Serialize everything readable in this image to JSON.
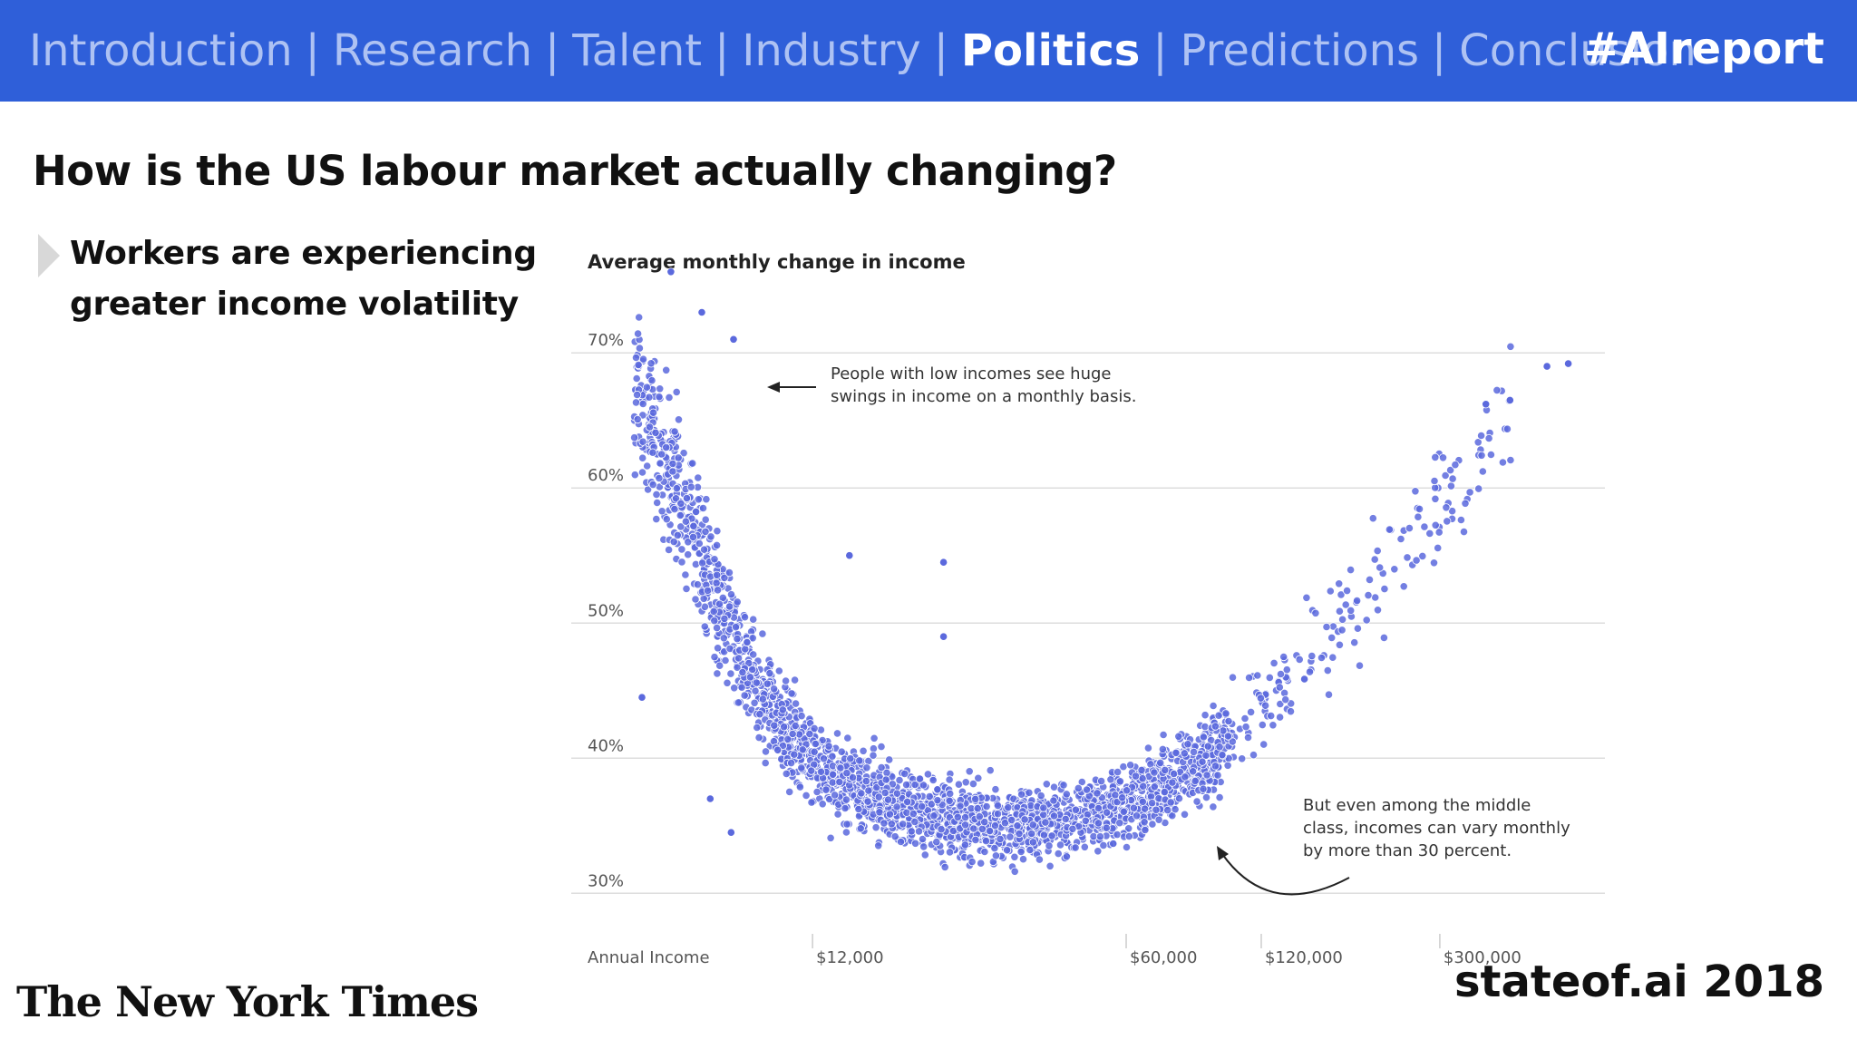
{
  "nav": {
    "items": [
      {
        "label": "Introduction",
        "active": false
      },
      {
        "label": "Research",
        "active": false
      },
      {
        "label": "Talent",
        "active": false
      },
      {
        "label": "Industry",
        "active": false
      },
      {
        "label": "Politics",
        "active": true
      },
      {
        "label": "Predictions",
        "active": false
      },
      {
        "label": "Conclusion",
        "active": false
      }
    ],
    "separator": "|",
    "hashtag": "#AIreport"
  },
  "page": {
    "title": "How is the US labour market actually changing?",
    "bullet": "Workers are experiencing greater income volatility"
  },
  "footer": {
    "source_logo": "The New York Times",
    "brand": "stateof.ai 2018"
  },
  "colors": {
    "bar": "#2f5fd9",
    "nav_inactive": "#aec2f3",
    "dot": "#5b69dd",
    "grid": "#dddddd"
  },
  "chart_data": {
    "type": "scatter",
    "title": "Average monthly change in income",
    "xlabel": "Annual Income",
    "ylabel": "",
    "x_scale": "log",
    "x_ticks": [
      {
        "value": 12000,
        "label": "$12,000"
      },
      {
        "value": 60000,
        "label": "$60,000"
      },
      {
        "value": 120000,
        "label": "$120,000"
      },
      {
        "value": 300000,
        "label": "$300,000"
      }
    ],
    "xlim": [
      4000,
      700000
    ],
    "y_ticks": [
      {
        "value": 30,
        "label": "30%"
      },
      {
        "value": 40,
        "label": "40%"
      },
      {
        "value": 50,
        "label": "50%"
      },
      {
        "value": 60,
        "label": "60%"
      },
      {
        "value": 70,
        "label": "70%"
      }
    ],
    "ylim": [
      27,
      78
    ],
    "grid": true,
    "trend": [
      {
        "x": 5000,
        "y": 66
      },
      {
        "x": 6000,
        "y": 60
      },
      {
        "x": 7000,
        "y": 54
      },
      {
        "x": 8500,
        "y": 47
      },
      {
        "x": 10500,
        "y": 42
      },
      {
        "x": 14000,
        "y": 38
      },
      {
        "x": 20000,
        "y": 36
      },
      {
        "x": 30000,
        "y": 35
      },
      {
        "x": 45000,
        "y": 35.5
      },
      {
        "x": 65000,
        "y": 37
      },
      {
        "x": 90000,
        "y": 40
      },
      {
        "x": 120000,
        "y": 44
      },
      {
        "x": 160000,
        "y": 48
      },
      {
        "x": 220000,
        "y": 53
      },
      {
        "x": 300000,
        "y": 59
      },
      {
        "x": 450000,
        "y": 67
      }
    ],
    "point_count": 2600,
    "outliers": [
      {
        "x": 5800,
        "y": 76
      },
      {
        "x": 6800,
        "y": 73
      },
      {
        "x": 8000,
        "y": 71
      },
      {
        "x": 14500,
        "y": 55
      },
      {
        "x": 23500,
        "y": 54.5
      },
      {
        "x": 23500,
        "y": 49
      },
      {
        "x": 5000,
        "y": 44.5
      },
      {
        "x": 7100,
        "y": 37
      },
      {
        "x": 7900,
        "y": 34.5
      },
      {
        "x": 520000,
        "y": 69
      },
      {
        "x": 580000,
        "y": 69.2
      },
      {
        "x": 430000,
        "y": 66.5
      },
      {
        "x": 380000,
        "y": 66.2
      }
    ],
    "annotations": [
      {
        "text_lines": [
          "People with low incomes see huge",
          "swings in income on a monthly basis."
        ]
      },
      {
        "text_lines": [
          "But even among the middle",
          "class, incomes can vary monthly",
          "by more than 30 percent."
        ]
      }
    ]
  }
}
